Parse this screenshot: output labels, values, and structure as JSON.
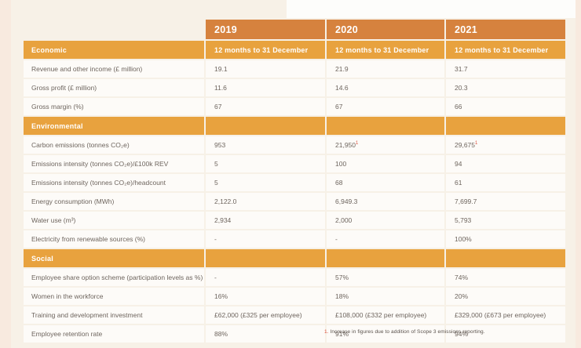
{
  "columns": [
    {
      "year": "2019",
      "period": "12 months to 31 December"
    },
    {
      "year": "2020",
      "period": "12 months to 31 December"
    },
    {
      "year": "2021",
      "period": "12 months to 31 December"
    }
  ],
  "sections": [
    {
      "title": "Economic",
      "rows": [
        {
          "label": "Revenue and other income (£ million)",
          "values": [
            "19.1",
            "21.9",
            "31.7"
          ]
        },
        {
          "label": "Gross profit (£ million)",
          "values": [
            "11.6",
            "14.6",
            "20.3"
          ]
        },
        {
          "label": "Gross margin (%)",
          "values": [
            "67",
            "67",
            "66"
          ]
        }
      ]
    },
    {
      "title": "Environmental",
      "rows": [
        {
          "label": "Carbon emissions (tonnes CO₂e)",
          "values": [
            "953",
            "21,950¹",
            "29,675¹"
          ]
        },
        {
          "label": "Emissions intensity (tonnes CO₂e)/£100k REV",
          "values": [
            "5",
            "100",
            "94"
          ]
        },
        {
          "label": "Emissions intensity (tonnes CO₂e)/headcount",
          "values": [
            "5",
            "68",
            "61"
          ]
        },
        {
          "label": "Energy consumption (MWh)",
          "values": [
            "2,122.0",
            "6,949.3",
            "7,699.7"
          ]
        },
        {
          "label": "Water use (m³)",
          "values": [
            "2,934",
            "2,000",
            "5,793"
          ]
        },
        {
          "label": "Electricity from renewable sources (%)",
          "values": [
            "-",
            "-",
            "100%"
          ]
        }
      ]
    },
    {
      "title": "Social",
      "rows": [
        {
          "label": "Employee share option scheme (participation levels as %)",
          "values": [
            "-",
            "57%",
            "74%"
          ]
        },
        {
          "label": "Women in the workforce",
          "values": [
            "16%",
            "18%",
            "20%"
          ]
        },
        {
          "label": "Training and development investment",
          "values": [
            "£62,000 (£325 per employee)",
            "£108,000 (£332 per employee)",
            "£329,000 (£673 per employee)"
          ]
        },
        {
          "label": "Employee retention rate",
          "values": [
            "88%",
            "91%",
            "94%"
          ]
        }
      ]
    }
  ],
  "footnote": {
    "marker": "1.",
    "text": "Increase in figures due to addition of Scope 3 emissions reporting."
  },
  "colors": {
    "page_bg": "#f7f1e7",
    "edge_strip": "#f8eadf",
    "year_header": "#d6823e",
    "section_header": "#e8a23e",
    "row_bg": "#fdfbf8",
    "text": "#6e655e",
    "footnote_ref": "#d94f3d"
  }
}
